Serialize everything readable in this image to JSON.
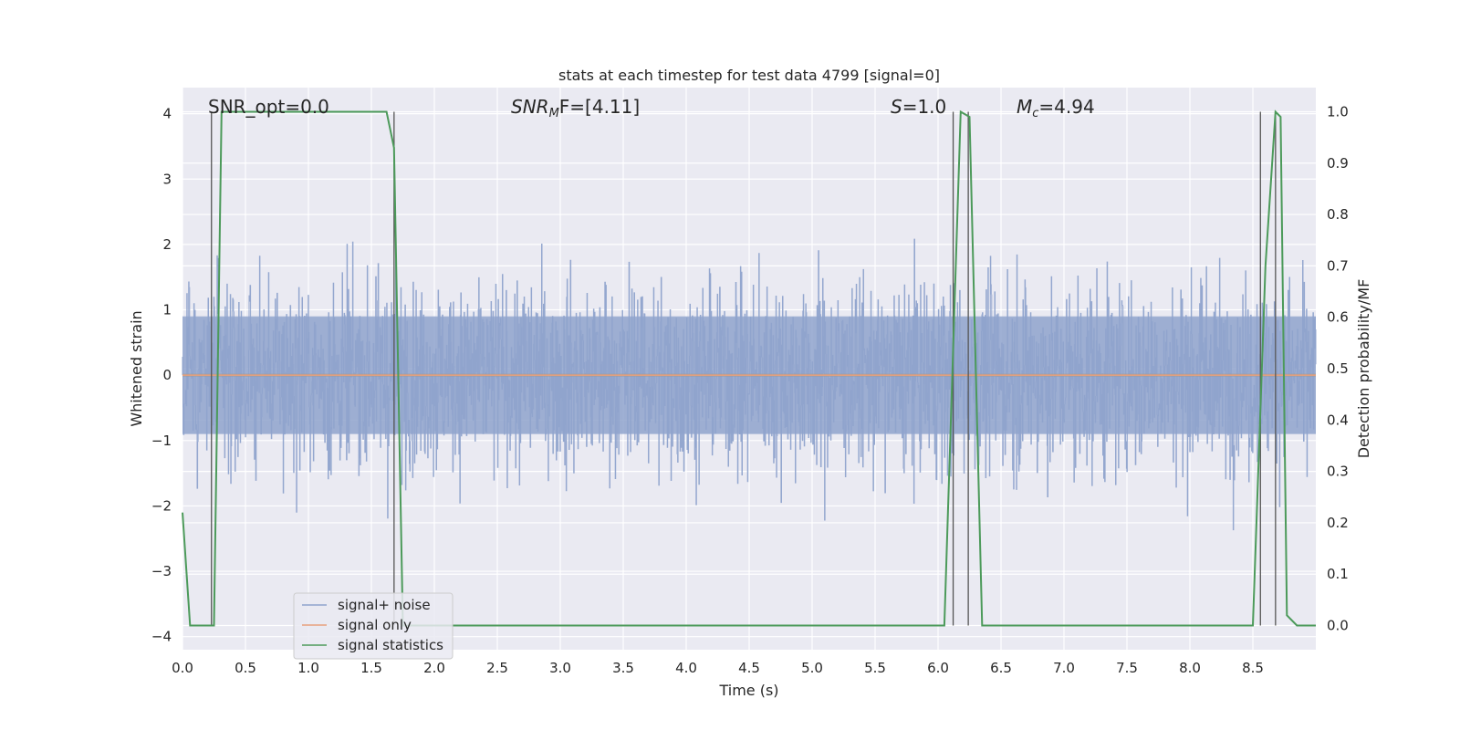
{
  "chart_data": {
    "type": "line",
    "title": "stats at each timestep for test data 4799 [signal=0]",
    "xlabel": "Time (s)",
    "ylabel": "Whitened strain",
    "y2label": "Detection probability/MF",
    "xlim": [
      0,
      9.0
    ],
    "ylim": [
      -4.2,
      4.4
    ],
    "y2lim": [
      -0.047,
      1.047
    ],
    "xticks": [
      0.0,
      0.5,
      1.0,
      1.5,
      2.0,
      2.5,
      3.0,
      3.5,
      4.0,
      4.5,
      5.0,
      5.5,
      6.0,
      6.5,
      7.0,
      7.5,
      8.0,
      8.5
    ],
    "xtick_labels": [
      "0.0",
      "0.5",
      "1.0",
      "1.5",
      "2.0",
      "2.5",
      "3.0",
      "3.5",
      "4.0",
      "4.5",
      "5.0",
      "5.5",
      "6.0",
      "6.5",
      "7.0",
      "7.5",
      "8.0",
      "8.5"
    ],
    "yticks": [
      4,
      3,
      2,
      1,
      0,
      -1,
      -2,
      -3,
      -4
    ],
    "ytick_labels": [
      "4",
      "3",
      "2",
      "1",
      "0",
      "−1",
      "−2",
      "−3",
      "−4"
    ],
    "y2ticks": [
      1.0,
      0.9,
      0.8,
      0.7,
      0.6,
      0.5,
      0.4,
      0.3,
      0.2,
      0.1,
      0.0
    ],
    "y2tick_labels": [
      "1.0",
      "0.9",
      "0.8",
      "0.7",
      "0.6",
      "0.5",
      "0.4",
      "0.3",
      "0.2",
      "0.1",
      "0.0"
    ],
    "grid": true,
    "legend_position": "lower-left",
    "annotations": {
      "snr_opt": "SNR_opt=0.0",
      "snr_mf_main": "SNR",
      "snr_mf_sub": "M",
      "snr_mf_rest": "F=[4.11]",
      "s_main": "S",
      "s_rest": "=1.0",
      "mc_main": "M",
      "mc_sub": "c",
      "mc_rest": "=4.94"
    },
    "series": [
      {
        "name": "signal+ noise",
        "color": "#8fa3cc",
        "axis": "left",
        "noise_envelope_x": [
          0.0,
          1.0,
          2.0,
          3.0,
          4.0,
          5.0,
          6.0,
          7.0,
          8.0,
          9.0
        ],
        "noise_envelope_amp": [
          2.6,
          2.6,
          2.6,
          2.6,
          2.6,
          2.6,
          2.6,
          2.6,
          2.6,
          2.6
        ]
      },
      {
        "name": "signal only",
        "color": "#e8a07c",
        "axis": "left",
        "x": [
          0.0,
          9.0
        ],
        "y": [
          0.0,
          0.0
        ]
      },
      {
        "name": "signal statistics",
        "color": "#4c9a5a",
        "axis": "right",
        "x": [
          0.0,
          0.06,
          0.25,
          0.31,
          1.0,
          1.62,
          1.68,
          1.75,
          2.0,
          5.5,
          5.6,
          6.05,
          6.18,
          6.25,
          6.35,
          8.5,
          8.6,
          8.68,
          8.72,
          8.77,
          8.85,
          9.0
        ],
        "y": [
          0.22,
          0.0,
          0.0,
          1.0,
          1.0,
          1.0,
          0.93,
          0.0,
          0.0,
          0.0,
          0.0,
          0.0,
          1.0,
          0.99,
          0.0,
          0.0,
          0.7,
          1.0,
          0.99,
          0.02,
          0.0,
          0.0
        ]
      }
    ],
    "vertical_markers": [
      0.23,
      1.68,
      6.12,
      6.24,
      8.56,
      8.68
    ]
  },
  "colors": {
    "background": "#eaeaf2",
    "grid": "#ffffff",
    "noise": "#8fa3cc",
    "signal_only": "#e8a07c",
    "statistics": "#4c9a5a",
    "markers": "#555555"
  }
}
